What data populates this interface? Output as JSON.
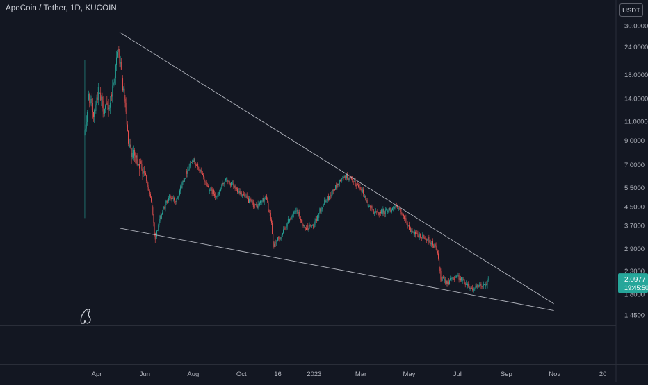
{
  "header": {
    "symbol_title": "ApeCoin / Tether, 1D, KUCOIN",
    "unit_label": "USDT"
  },
  "price_tag": {
    "price": "2.0977",
    "countdown": "19:45:50",
    "color": "#26a69a"
  },
  "colors": {
    "background": "#131722",
    "up_candle": "#26a69a",
    "down_candle": "#ef5350",
    "trendline": "#b2b5be",
    "axis_text": "#b2b5be"
  },
  "chart_data": {
    "type": "candlestick",
    "title": "ApeCoin / Tether, 1D, KUCOIN",
    "y_scale": "log",
    "ylim": [
      1.35,
      32
    ],
    "y_ticks": [
      "30.0000",
      "24.0000",
      "18.0000",
      "14.0000",
      "11.0000",
      "9.0000",
      "7.0000",
      "5.5000",
      "4.5000",
      "3.7000",
      "2.9000",
      "2.3000",
      "1.8000",
      "1.4500"
    ],
    "x_ticks": [
      "Apr",
      "Jun",
      "Aug",
      "Oct",
      "16",
      "2023",
      "Mar",
      "May",
      "Jul",
      "Sep",
      "Nov",
      "20"
    ],
    "x_range": [
      "2022-03-10",
      "2023-12-01"
    ],
    "last_price": 2.0977,
    "price_path": [
      [
        "2022-03-17",
        9.5
      ],
      [
        "2022-03-22",
        14.5
      ],
      [
        "2022-03-28",
        12.0
      ],
      [
        "2022-04-03",
        15.0
      ],
      [
        "2022-04-10",
        12.5
      ],
      [
        "2022-04-17",
        13.0
      ],
      [
        "2022-04-24",
        18.0
      ],
      [
        "2022-04-28",
        24.0
      ],
      [
        "2022-05-02",
        18.0
      ],
      [
        "2022-05-07",
        13.0
      ],
      [
        "2022-05-11",
        8.5
      ],
      [
        "2022-05-20",
        7.5
      ],
      [
        "2022-06-01",
        6.5
      ],
      [
        "2022-06-10",
        4.5
      ],
      [
        "2022-06-14",
        3.2
      ],
      [
        "2022-06-20",
        4.0
      ],
      [
        "2022-07-01",
        5.0
      ],
      [
        "2022-07-10",
        4.8
      ],
      [
        "2022-07-20",
        6.0
      ],
      [
        "2022-07-31",
        7.5
      ],
      [
        "2022-08-10",
        6.5
      ],
      [
        "2022-08-20",
        5.5
      ],
      [
        "2022-09-01",
        5.0
      ],
      [
        "2022-09-10",
        6.0
      ],
      [
        "2022-09-20",
        5.6
      ],
      [
        "2022-10-01",
        5.2
      ],
      [
        "2022-10-10",
        4.8
      ],
      [
        "2022-10-20",
        4.5
      ],
      [
        "2022-11-01",
        5.0
      ],
      [
        "2022-11-08",
        3.8
      ],
      [
        "2022-11-10",
        3.0
      ],
      [
        "2022-11-20",
        3.3
      ],
      [
        "2022-12-01",
        4.0
      ],
      [
        "2022-12-10",
        4.3
      ],
      [
        "2022-12-20",
        3.6
      ],
      [
        "2023-01-01",
        3.7
      ],
      [
        "2023-01-10",
        4.5
      ],
      [
        "2023-01-20",
        5.0
      ],
      [
        "2023-02-01",
        5.8
      ],
      [
        "2023-02-10",
        6.2
      ],
      [
        "2023-02-20",
        5.8
      ],
      [
        "2023-03-01",
        5.5
      ],
      [
        "2023-03-10",
        4.6
      ],
      [
        "2023-03-20",
        4.2
      ],
      [
        "2023-04-01",
        4.3
      ],
      [
        "2023-04-15",
        4.5
      ],
      [
        "2023-04-25",
        4.0
      ],
      [
        "2023-05-05",
        3.4
      ],
      [
        "2023-05-15",
        3.3
      ],
      [
        "2023-05-25",
        3.2
      ],
      [
        "2023-06-05",
        2.9
      ],
      [
        "2023-06-10",
        2.1
      ],
      [
        "2023-06-20",
        2.05
      ],
      [
        "2023-06-30",
        2.2
      ],
      [
        "2023-07-10",
        2.05
      ],
      [
        "2023-07-20",
        1.9
      ],
      [
        "2023-07-28",
        1.95
      ],
      [
        "2023-08-05",
        2.0
      ],
      [
        "2023-08-10",
        2.0977
      ]
    ],
    "trendlines": [
      {
        "name": "upper",
        "from": [
          "2022-04-30",
          28.0
        ],
        "to": [
          "2023-10-31",
          1.63
        ]
      },
      {
        "name": "lower",
        "from": [
          "2022-04-30",
          3.6
        ],
        "to": [
          "2023-10-31",
          1.52
        ]
      }
    ]
  }
}
